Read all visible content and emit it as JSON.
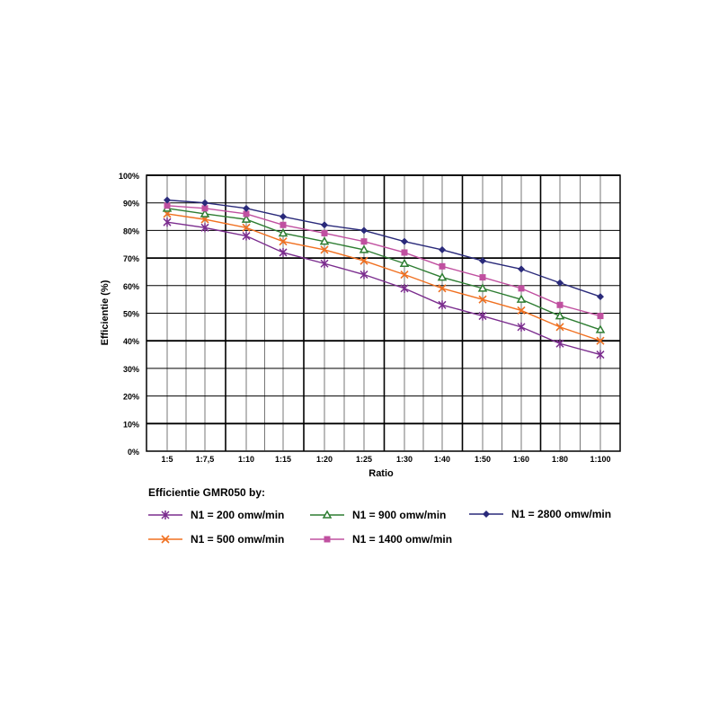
{
  "chart_data": {
    "type": "line",
    "xlabel": "Ratio",
    "ylabel": "Efficientie (%)",
    "categories": [
      "1:5",
      "1:7,5",
      "1:10",
      "1:15",
      "1:20",
      "1:25",
      "1:30",
      "1:40",
      "1:50",
      "1:60",
      "1:80",
      "1:100"
    ],
    "yticks": [
      "0%",
      "10%",
      "20%",
      "30%",
      "40%",
      "50%",
      "60%",
      "70%",
      "80%",
      "90%",
      "100%"
    ],
    "ylim": [
      0,
      100
    ],
    "grid": true,
    "legend_title": "Efficientie GMR050 by:",
    "legend_placement": "bottom",
    "series": [
      {
        "name": "N1 = 200 omw/min",
        "color": "#7b2d8e",
        "marker": "asterisk",
        "values": [
          83,
          81,
          78,
          72,
          68,
          64,
          59,
          53,
          49,
          45,
          39,
          35
        ]
      },
      {
        "name": "N1 = 500 omw/min",
        "color": "#f07020",
        "marker": "x",
        "values": [
          86,
          84,
          81,
          76,
          73,
          69,
          64,
          59,
          55,
          51,
          45,
          40
        ]
      },
      {
        "name": "N1 = 900 omw/min",
        "color": "#2e7d32",
        "marker": "triangle",
        "values": [
          88,
          86,
          84,
          79,
          76,
          73,
          68,
          63,
          59,
          55,
          49,
          44
        ]
      },
      {
        "name": "N1 = 1400 omw/min",
        "color": "#c050a0",
        "marker": "square",
        "values": [
          89,
          88,
          86,
          82,
          79,
          76,
          72,
          67,
          63,
          59,
          53,
          49
        ]
      },
      {
        "name": "N1 = 2800 omw/min",
        "color": "#2a2a7a",
        "marker": "diamond",
        "values": [
          91,
          90,
          88,
          85,
          82,
          80,
          76,
          73,
          69,
          66,
          61,
          56
        ]
      }
    ]
  }
}
